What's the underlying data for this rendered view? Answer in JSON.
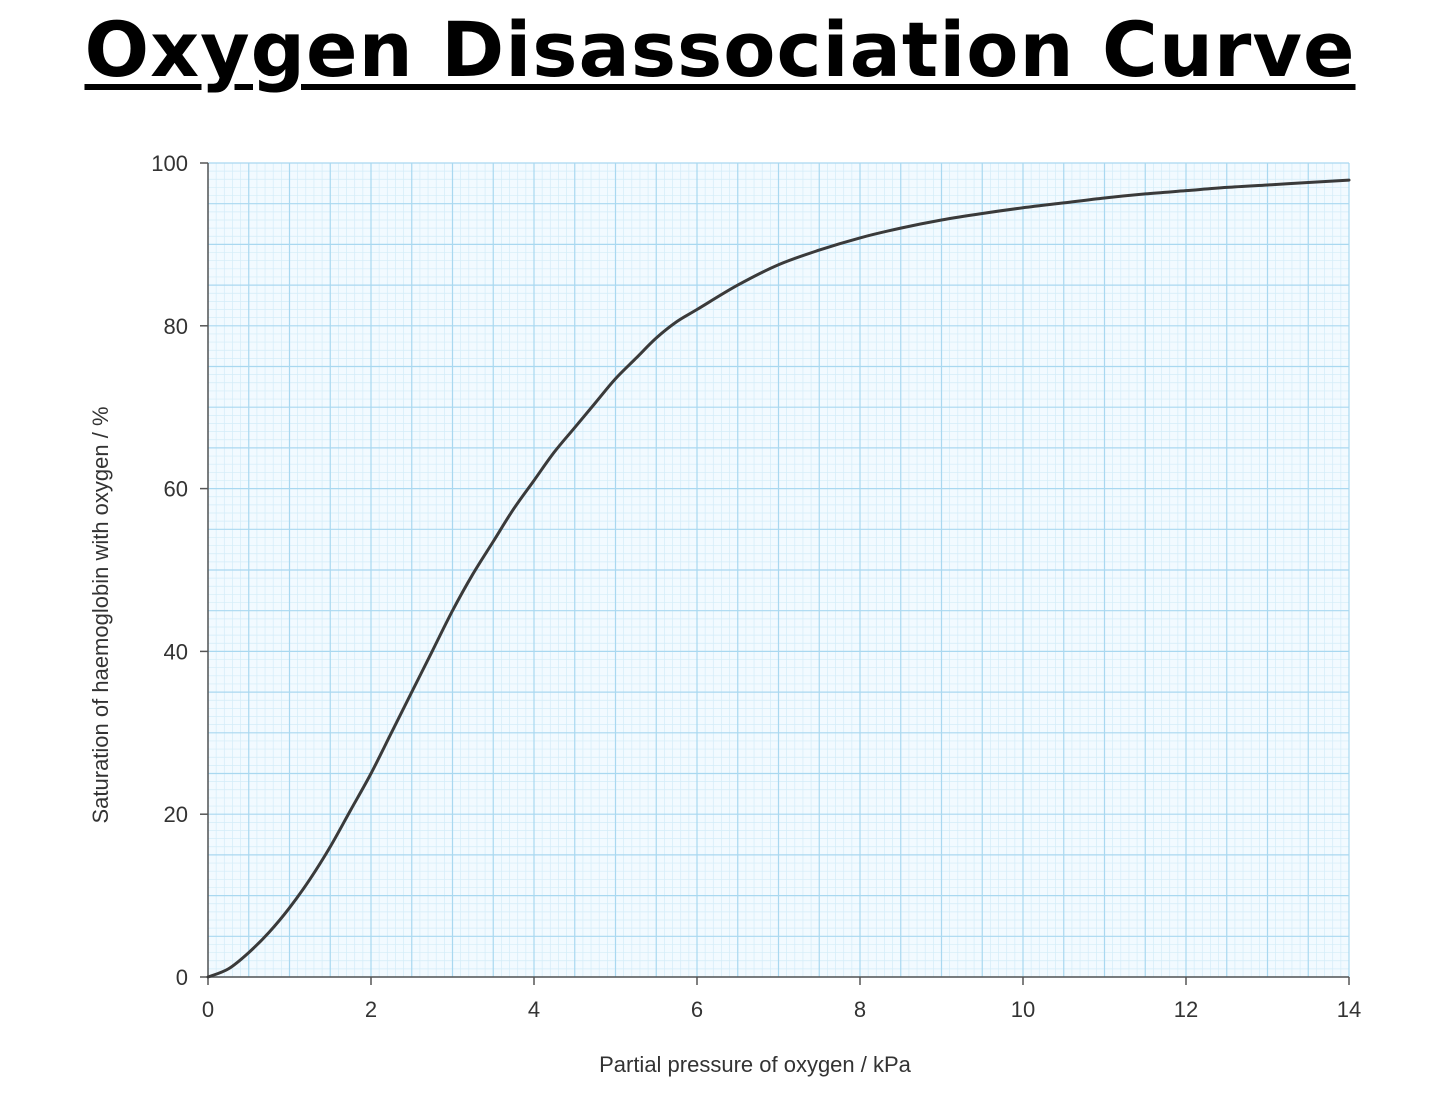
{
  "chart_data": {
    "type": "line",
    "title": "Oxygen Disassociation Curve",
    "xlabel": "Partial pressure of oxygen / kPa",
    "ylabel": "Saturation of haemoglobin with oxygen / %",
    "xlim": [
      0,
      14
    ],
    "ylim": [
      0,
      100
    ],
    "x_ticks": [
      0,
      2,
      4,
      6,
      8,
      10,
      12,
      14
    ],
    "y_ticks": [
      0,
      20,
      40,
      60,
      80,
      100
    ],
    "grid": true,
    "colors": {
      "background": "#f2faff",
      "grid_minor": "#d3ecf8",
      "grid_major": "#a9d8f0",
      "curve": "#3a3a3a",
      "axis": "#555555"
    },
    "series": [
      {
        "x": [
          0,
          0.25,
          0.5,
          0.75,
          1,
          1.25,
          1.5,
          1.75,
          2,
          2.25,
          2.5,
          2.75,
          3,
          3.25,
          3.5,
          3.75,
          4,
          4.25,
          4.5,
          4.75,
          5,
          5.25,
          5.5,
          5.75,
          6,
          6.5,
          7,
          7.5,
          8,
          8.5,
          9,
          9.5,
          10,
          10.5,
          11,
          11.5,
          12,
          12.5,
          13,
          13.5,
          14
        ],
        "y": [
          0,
          1,
          3,
          5.5,
          8.5,
          12,
          16,
          20.5,
          25,
          30,
          35,
          40,
          45,
          49.5,
          53.5,
          57.5,
          61,
          64.5,
          67.5,
          70.5,
          73.5,
          76,
          78.5,
          80.5,
          82,
          85,
          87.5,
          89.3,
          90.8,
          92,
          93,
          93.8,
          94.5,
          95.1,
          95.7,
          96.2,
          96.6,
          97,
          97.3,
          97.6,
          97.9
        ]
      }
    ]
  }
}
